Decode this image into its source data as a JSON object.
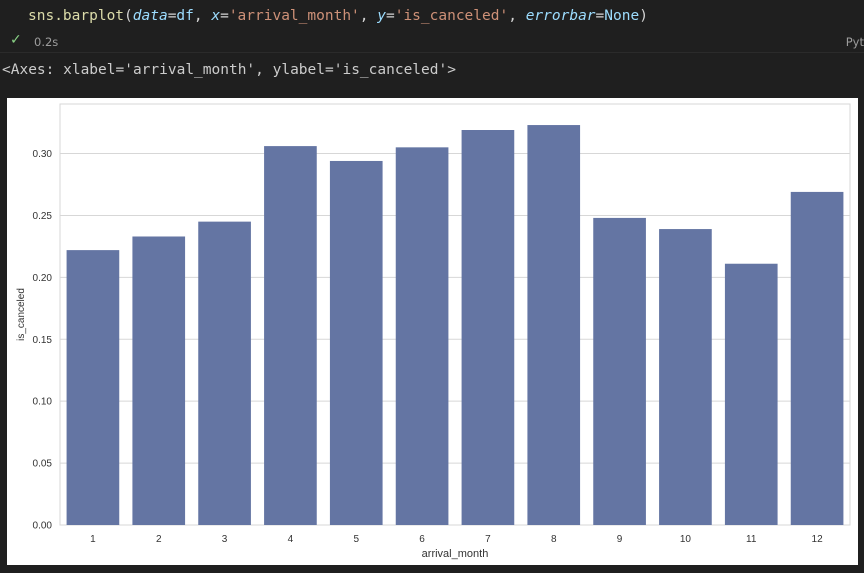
{
  "cell": {
    "code": {
      "fn": "sns.barplot",
      "p1_name": "data",
      "p1_val": "df",
      "p2_name": "x",
      "p2_val": "'arrival_month'",
      "p3_name": "y",
      "p3_val": "'is_canceled'",
      "p4_name": "errorbar",
      "p4_val": "None"
    },
    "status_time": "0.2s",
    "language": "Pyt"
  },
  "output": {
    "repr": "<Axes: xlabel='arrival_month', ylabel='is_canceled'>"
  },
  "colors": {
    "bar": "#6475a3",
    "grid": "#d7d7d7",
    "check": "#89d185"
  },
  "chart_data": {
    "type": "bar",
    "categories": [
      "1",
      "2",
      "3",
      "4",
      "5",
      "6",
      "7",
      "8",
      "9",
      "10",
      "11",
      "12"
    ],
    "values": [
      0.222,
      0.233,
      0.245,
      0.306,
      0.294,
      0.305,
      0.319,
      0.323,
      0.248,
      0.239,
      0.211,
      0.269
    ],
    "xlabel": "arrival_month",
    "ylabel": "is_canceled",
    "ylim": [
      0,
      0.34
    ],
    "yticks": [
      "0.00",
      "0.05",
      "0.10",
      "0.15",
      "0.20",
      "0.25",
      "0.30"
    ],
    "grid": "horizontal"
  }
}
